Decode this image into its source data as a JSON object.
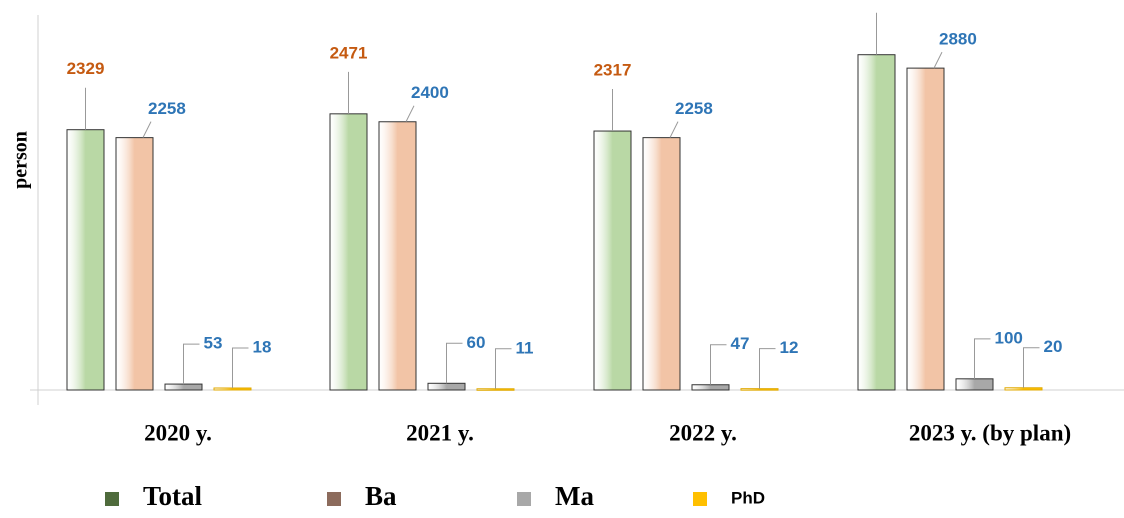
{
  "chart_data": {
    "type": "bar",
    "y_label": "person",
    "categories": [
      "2020 y.",
      "2021  y.",
      "2022 y.",
      "2023 y. (by plan)"
    ],
    "series": [
      {
        "name": "Total",
        "color": "#b9d8a5",
        "legend_color": "#4f6b3c",
        "label_color": "#c55a11",
        "values": [
          2329,
          2471,
          2317,
          3000
        ]
      },
      {
        "name": "Ba",
        "color": "#f2c4a6",
        "legend_color": "#8c6b5c",
        "label_color": "#2e75b6",
        "values": [
          2258,
          2400,
          2258,
          2880
        ]
      },
      {
        "name": "Ma",
        "color": "#a8a8a8",
        "legend_color": "#a8a8a8",
        "label_color": "#2e75b6",
        "values": [
          53,
          60,
          47,
          100
        ]
      },
      {
        "name": "PhD",
        "color": "#ffc000",
        "legend_color": "#ffc000",
        "label_color": "#2e75b6",
        "values": [
          18,
          11,
          12,
          20
        ]
      }
    ],
    "ylim": [
      0,
      3400
    ]
  }
}
